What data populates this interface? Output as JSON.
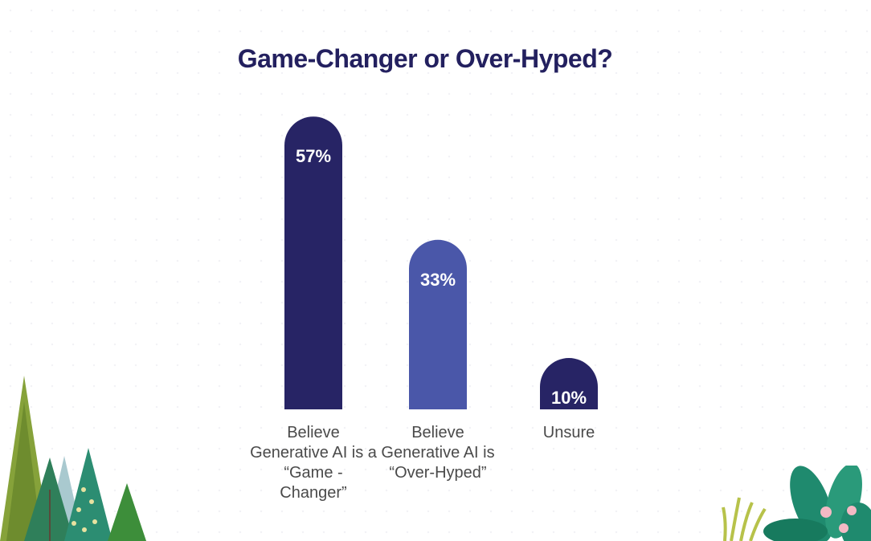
{
  "colors": {
    "title": "#23205f",
    "bar_dark": "#272465",
    "bar_light": "#4a57a9",
    "label": "#4a4a4a"
  },
  "chart_data": {
    "type": "bar",
    "title": "Game-Changer or Over-Hyped?",
    "categories": [
      "Believe Generative AI is a “Game - Changer”",
      "Believe Generative AI is “Over-Hyped”",
      "Unsure"
    ],
    "values": [
      57,
      33,
      10
    ],
    "data_labels": [
      "57%",
      "33%",
      "10%"
    ],
    "unit": "%",
    "ylim": [
      0,
      60
    ],
    "grid": false,
    "legend": "none",
    "bar_colors": [
      "#272465",
      "#4a57a9",
      "#272465"
    ]
  }
}
